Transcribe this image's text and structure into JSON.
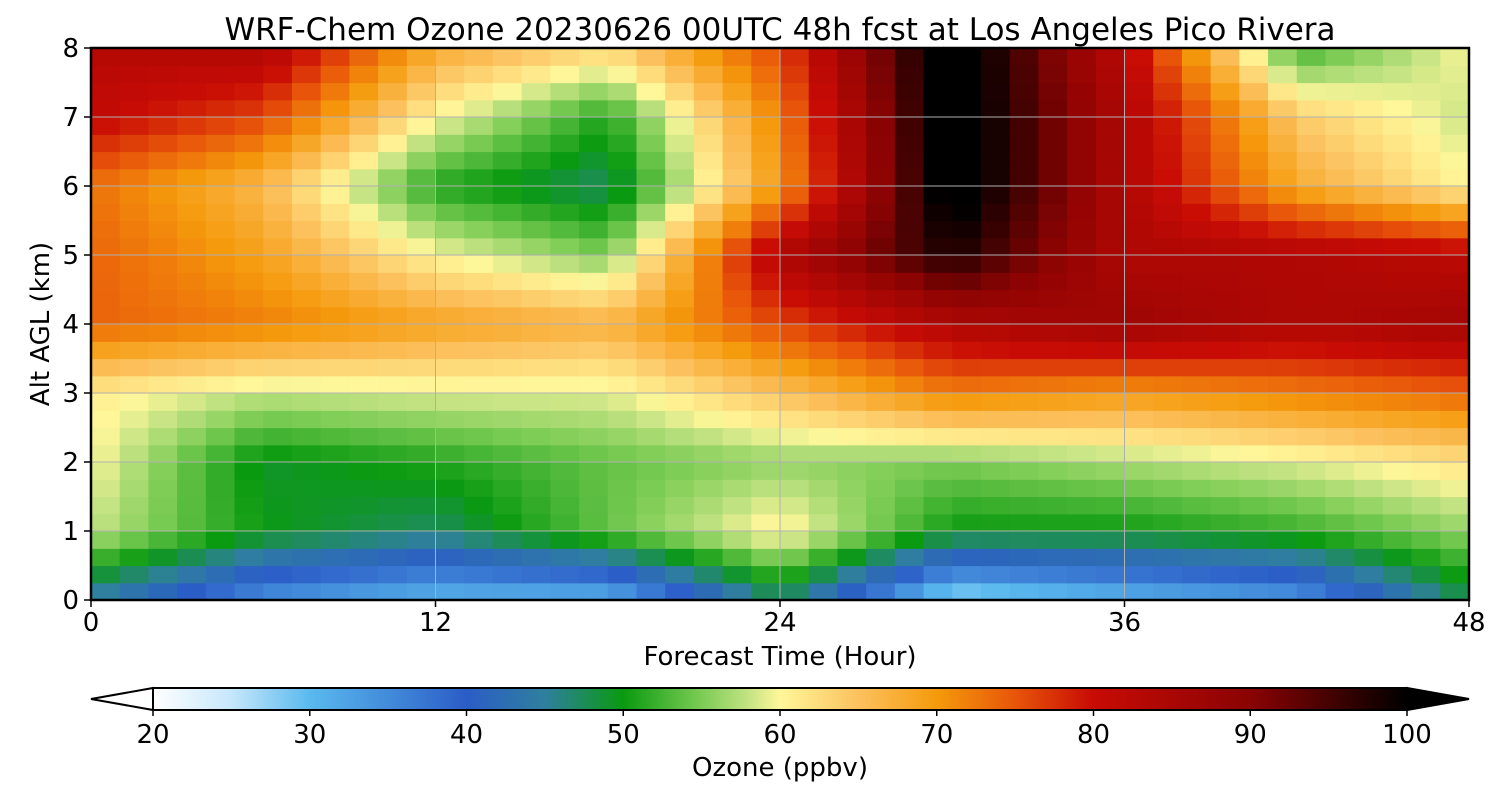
{
  "chart_data": {
    "type": "heatmap",
    "title": "WRF-Chem Ozone  20230626 00UTC 48h fcst at Los Angeles Pico Rivera",
    "xlabel": "Forecast Time (Hour)",
    "ylabel": "Alt AGL (km)",
    "xlim": [
      0,
      48
    ],
    "ylim": [
      0,
      8
    ],
    "x_ticks": [
      0,
      12,
      24,
      36,
      48
    ],
    "y_ticks": [
      0,
      1,
      2,
      3,
      4,
      5,
      6,
      7,
      8
    ],
    "grid": true,
    "x": [
      0,
      6,
      12,
      18,
      24,
      30,
      36,
      42,
      48
    ],
    "y": [
      0,
      1,
      2,
      3,
      4,
      5,
      6,
      7,
      8
    ],
    "z": [
      [
        44,
        34,
        30,
        30,
        47,
        26,
        30,
        33,
        48
      ],
      [
        58,
        50,
        47,
        54,
        61,
        50,
        50,
        52,
        56
      ],
      [
        60,
        49,
        51,
        54,
        56,
        55,
        57,
        59,
        62
      ],
      [
        61,
        58,
        59,
        59,
        65,
        72,
        70,
        72,
        74
      ],
      [
        74,
        72,
        69,
        67,
        76,
        84,
        87,
        84,
        86
      ],
      [
        74,
        69,
        60,
        55,
        84,
        98,
        84,
        84,
        82
      ],
      [
        73,
        66,
        51,
        47,
        70,
        103,
        84,
        68,
        60
      ],
      [
        81,
        76,
        60,
        51,
        72,
        103,
        84,
        64,
        58
      ],
      [
        83,
        84,
        68,
        63,
        76,
        103,
        82,
        52,
        60
      ]
    ],
    "colorbar": {
      "label": "Ozone  (ppbv)",
      "min": 20,
      "max": 100,
      "ticks": [
        20,
        30,
        40,
        50,
        60,
        70,
        80,
        90,
        100
      ],
      "extend": "both",
      "colormap": [
        [
          20,
          "#ffffff"
        ],
        [
          25,
          "#c6e7fb"
        ],
        [
          30,
          "#5ab9ee"
        ],
        [
          40,
          "#2b5dc7"
        ],
        [
          45,
          "#2f7f9e"
        ],
        [
          50,
          "#0a9a10"
        ],
        [
          55,
          "#7ccc55"
        ],
        [
          58,
          "#c4e383"
        ],
        [
          60,
          "#fff79a"
        ],
        [
          65,
          "#fcc15e"
        ],
        [
          70,
          "#f59a0c"
        ],
        [
          75,
          "#e8550a"
        ],
        [
          80,
          "#c80b05"
        ],
        [
          90,
          "#8a0303"
        ],
        [
          100,
          "#000000"
        ]
      ]
    }
  }
}
